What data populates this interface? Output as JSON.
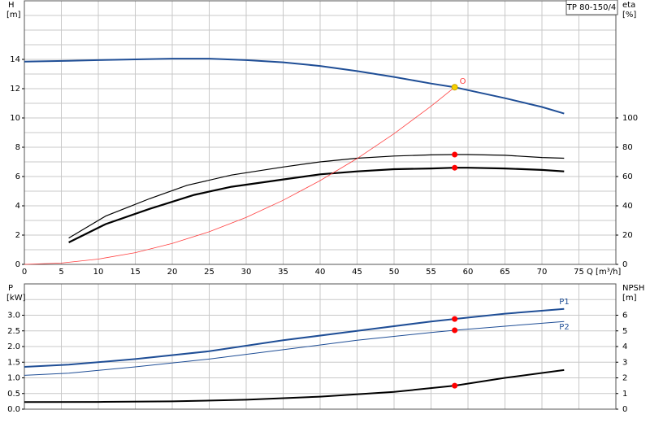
{
  "chart_data": [
    {
      "type": "line",
      "title": "TP 80-150/4",
      "ylabel": "H",
      "yunit": "[m]",
      "y2label": "eta",
      "y2unit": "[%]",
      "xlabel": "Q [m³/h]",
      "xlim": [
        0,
        80
      ],
      "xticks": [
        0,
        5,
        10,
        15,
        20,
        25,
        30,
        35,
        40,
        45,
        50,
        55,
        60,
        65,
        70,
        75
      ],
      "show_xticklabels": true,
      "ylim": [
        0,
        18
      ],
      "yticks": [
        0,
        2,
        4,
        6,
        8,
        10,
        12,
        14
      ],
      "yminorticks": [
        1,
        3,
        5,
        7,
        9,
        11,
        13,
        15,
        16,
        17
      ],
      "y2lim": [
        0,
        180
      ],
      "y2ticks": [
        0,
        20,
        40,
        60,
        80,
        100
      ],
      "grid": true,
      "series": [
        {
          "color": "#1f4e96",
          "linewidth": 2,
          "x": [
            0,
            6,
            10,
            15,
            20,
            25,
            30,
            35,
            40,
            45,
            50,
            55,
            58.2,
            60,
            65,
            70,
            73
          ],
          "values": [
            13.85,
            13.9,
            13.95,
            14.0,
            14.05,
            14.05,
            13.95,
            13.8,
            13.55,
            13.2,
            12.8,
            12.35,
            12.1,
            11.9,
            11.35,
            10.75,
            10.3
          ]
        },
        {
          "color": "#000000",
          "linewidth": 1.2,
          "axis": "y2",
          "x": [
            6,
            11,
            17,
            22,
            28,
            35,
            40,
            45,
            50,
            55,
            58.2,
            60,
            65,
            70,
            73
          ],
          "values": [
            18,
            33,
            45,
            54,
            61,
            66.5,
            70,
            72.5,
            74,
            74.8,
            75,
            75,
            74.5,
            73,
            72.5
          ]
        },
        {
          "color": "#000000",
          "linewidth": 2.2,
          "axis": "y2",
          "x": [
            6,
            11,
            17,
            23,
            28,
            35,
            40,
            45,
            50,
            55,
            58.2,
            60,
            65,
            70,
            73
          ],
          "values": [
            15,
            27.5,
            38,
            47.5,
            53,
            58,
            61.5,
            63.5,
            65,
            65.5,
            66,
            66,
            65.5,
            64.5,
            63.5
          ]
        },
        {
          "color": "#ff4040",
          "linewidth": 0.8,
          "x": [
            0,
            5,
            10,
            15,
            20,
            25,
            30,
            35,
            40,
            45,
            50,
            55,
            58.2
          ],
          "values": [
            0,
            0.09,
            0.36,
            0.8,
            1.43,
            2.23,
            3.21,
            4.38,
            5.72,
            7.23,
            8.93,
            10.8,
            12.1
          ]
        }
      ],
      "points": [
        {
          "x": 58.2,
          "y": 12.1,
          "color": "#f5d000"
        },
        {
          "x": 58.2,
          "y": 75,
          "axis": "y2",
          "color": "#ff0000"
        },
        {
          "x": 58.2,
          "y": 66,
          "axis": "y2",
          "color": "#ff0000"
        }
      ],
      "annotations": [
        {
          "text": "O",
          "x": 58.2,
          "y": 12.1
        }
      ]
    },
    {
      "type": "line",
      "ylabel": "P",
      "yunit": "[kW]",
      "y2label": "NPSH",
      "y2unit": "[m]",
      "xlim": [
        0,
        80
      ],
      "xticks": [
        0,
        5,
        10,
        15,
        20,
        25,
        30,
        35,
        40,
        45,
        50,
        55,
        60,
        65,
        70,
        75
      ],
      "show_xticklabels": false,
      "ylim": [
        0,
        4
      ],
      "yticks": [
        {
          "value": 0,
          "label": "0.0"
        },
        0.5,
        {
          "value": 1,
          "label": "1.0"
        },
        1.5,
        {
          "value": 2,
          "label": "2.0"
        },
        2.5,
        {
          "value": 3,
          "label": "3.0"
        }
      ],
      "yminorticks": [
        3.5
      ],
      "y2lim": [
        0,
        8
      ],
      "y2ticks": [
        0,
        1,
        2,
        3,
        4,
        5,
        6
      ],
      "grid": true,
      "series": [
        {
          "name": "P1",
          "color": "#1f4e96",
          "linewidth": 2,
          "x": [
            0,
            6,
            15,
            25,
            35,
            45,
            55,
            58.2,
            65,
            73
          ],
          "values": [
            1.35,
            1.42,
            1.6,
            1.85,
            2.2,
            2.5,
            2.8,
            2.88,
            3.05,
            3.2
          ]
        },
        {
          "name": "P2",
          "color": "#1f4e96",
          "linewidth": 1,
          "x": [
            0,
            6,
            15,
            25,
            35,
            45,
            55,
            58.2,
            65,
            73
          ],
          "values": [
            1.08,
            1.15,
            1.35,
            1.6,
            1.9,
            2.2,
            2.45,
            2.52,
            2.65,
            2.8
          ]
        },
        {
          "color": "#000000",
          "linewidth": 2,
          "axis": "y2",
          "x": [
            0,
            10,
            20,
            30,
            40,
            50,
            58.2,
            65,
            73
          ],
          "values": [
            0.45,
            0.46,
            0.5,
            0.6,
            0.8,
            1.1,
            1.5,
            2.0,
            2.5
          ]
        }
      ],
      "points": [
        {
          "x": 58.2,
          "y": 2.88,
          "color": "#ff0000"
        },
        {
          "x": 58.2,
          "y": 2.52,
          "color": "#ff0000"
        },
        {
          "x": 58.2,
          "y": 1.5,
          "axis": "y2",
          "color": "#ff0000"
        }
      ]
    }
  ]
}
